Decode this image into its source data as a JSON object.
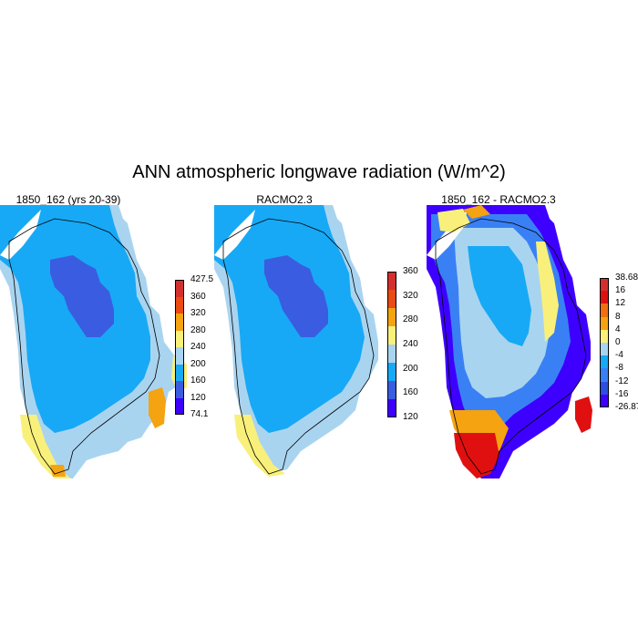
{
  "title": "ANN atmospheric longwave radiation (W/m^2)",
  "panels": [
    {
      "title": "1850_162 (yrs 20-39)",
      "kind": "abs1"
    },
    {
      "title": "RACMO2.3",
      "kind": "abs2"
    },
    {
      "title": "1850_162 - RACMO2.3",
      "kind": "diff"
    }
  ],
  "colorbars": [
    {
      "colors": [
        "#3d00ff",
        "#3a5ce0",
        "#17a9f5",
        "#a9d4f0",
        "#f8f07a",
        "#f5a311",
        "#ea4b12",
        "#d32f2f"
      ],
      "labels": [
        "427.5",
        "360",
        "320",
        "280",
        "240",
        "200",
        "160",
        "120",
        "74.1"
      ]
    },
    {
      "colors": [
        "#3d00ff",
        "#3a5ce0",
        "#17a9f5",
        "#a9d4f0",
        "#f8f07a",
        "#f5a311",
        "#ea4b12",
        "#d32f2f"
      ],
      "labels": [
        "360",
        "320",
        "280",
        "240",
        "200",
        "160",
        "120"
      ]
    },
    {
      "colors": [
        "#3d00ff",
        "#2d4fe0",
        "#3a80f5",
        "#17a9f5",
        "#a9d4f0",
        "#f8f07a",
        "#f5a311",
        "#f07011",
        "#e01010",
        "#d32f2f"
      ],
      "labels": [
        "38.68",
        "16",
        "12",
        "8",
        "4",
        "0",
        "-4",
        "-8",
        "-12",
        "-16",
        "-26.87"
      ]
    }
  ],
  "palette": {
    "ice_dark": "#3a5ce0",
    "ice_mid": "#17a9f5",
    "coast": "#a9d4f0",
    "edge_yellow": "#f8f07a",
    "orange": "#f5a311",
    "red": "#e01010",
    "violet": "#3d00ff",
    "white": "#ffffff"
  }
}
